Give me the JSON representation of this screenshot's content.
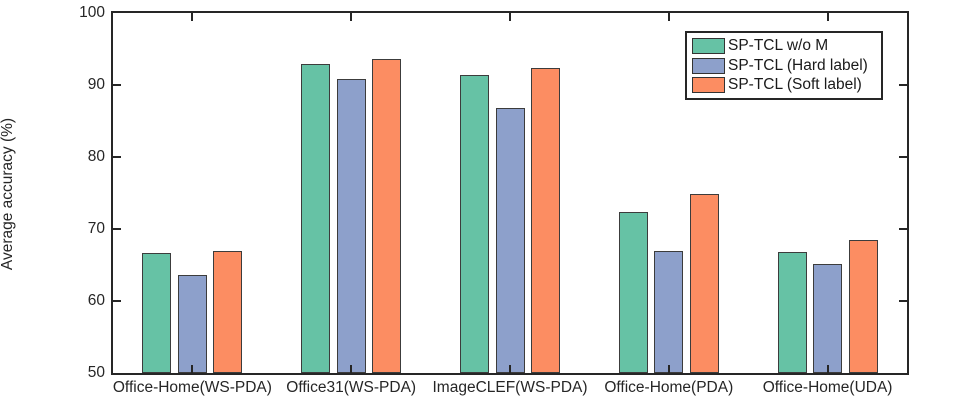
{
  "chart_data": {
    "type": "bar",
    "title": "",
    "xlabel": "",
    "ylabel": "Average accuracy (%)",
    "ylim": [
      50,
      100
    ],
    "yticks": [
      50,
      60,
      70,
      80,
      90,
      100
    ],
    "grid": false,
    "legend_position": "top-right",
    "categories": [
      "Office-Home(WS-PDA)",
      "Office31(WS-PDA)",
      "ImageCLEF(WS-PDA)",
      "Office-Home(PDA)",
      "Office-Home(UDA)"
    ],
    "series": [
      {
        "name": "SP-TCL w/o M",
        "color": "#66C2A5",
        "values": [
          66.7,
          92.9,
          91.4,
          72.3,
          66.8
        ]
      },
      {
        "name": "SP-TCL (Hard label)",
        "color": "#8DA0CB",
        "values": [
          63.6,
          90.8,
          86.8,
          67.0,
          65.1
        ]
      },
      {
        "name": "SP-TCL (Soft label)",
        "color": "#FC8D62",
        "values": [
          66.9,
          93.6,
          92.3,
          74.9,
          68.5
        ]
      }
    ],
    "colors": {
      "axis": "#262626",
      "bar_edge": "#3c3c3c",
      "background": "#ffffff"
    }
  }
}
